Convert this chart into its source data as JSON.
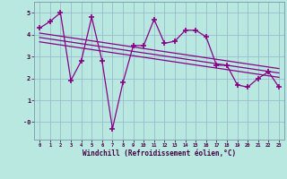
{
  "xlabel": "Windchill (Refroidissement éolien,°C)",
  "background_color": "#b8e8e0",
  "grid_color": "#99bbcc",
  "line_color": "#880088",
  "hours": [
    0,
    1,
    2,
    3,
    4,
    5,
    6,
    7,
    8,
    9,
    10,
    11,
    12,
    13,
    14,
    15,
    16,
    17,
    18,
    19,
    20,
    21,
    22,
    23
  ],
  "windchill": [
    4.3,
    4.6,
    5.0,
    1.9,
    2.8,
    4.8,
    2.8,
    -0.3,
    1.8,
    3.5,
    3.5,
    4.7,
    3.6,
    3.7,
    4.2,
    4.2,
    3.9,
    2.6,
    2.6,
    1.7,
    1.6,
    2.0,
    2.3,
    1.6
  ],
  "ylim": [
    -0.8,
    5.5
  ],
  "xlim": [
    -0.5,
    23.5
  ],
  "trend_lines": [
    [
      4.5,
      1.9
    ],
    [
      4.7,
      2.1
    ],
    [
      4.3,
      1.7
    ]
  ]
}
